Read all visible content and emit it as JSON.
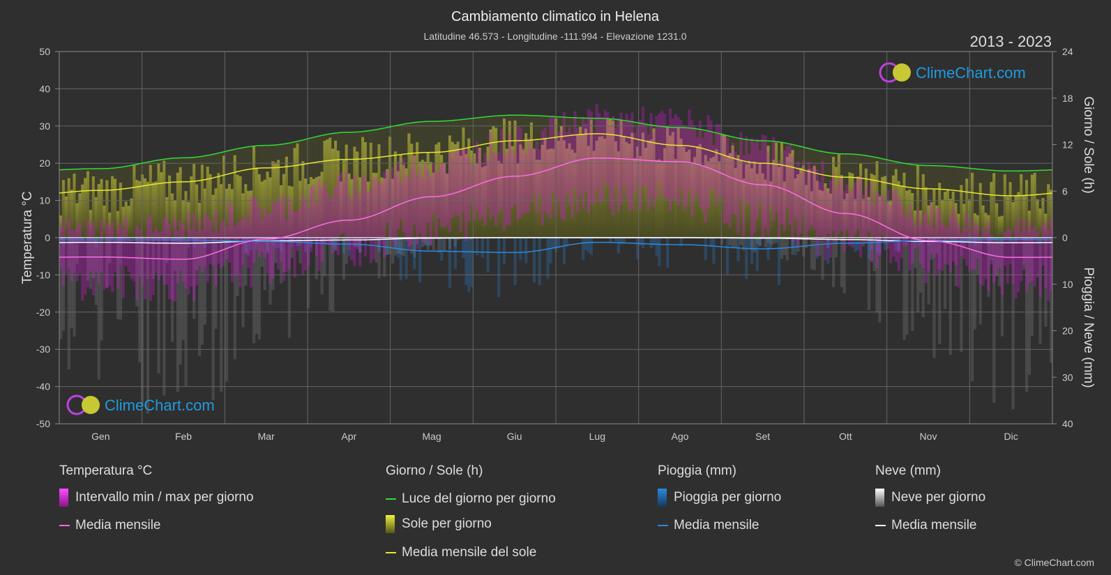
{
  "header": {
    "title": "Cambiamento climatico in Helena",
    "subtitle": "Latitudine 46.573 - Longitudine -111.994 - Elevazione 1231.0",
    "years": "2013 - 2023"
  },
  "brand": {
    "name": "ClimeChart.com",
    "copyright": "© ClimeChart.com"
  },
  "colors": {
    "background": "#2f2f2f",
    "temp_range": "#d81bd8",
    "temp_mean": "#ff6be8",
    "daylight": "#33dd33",
    "sun": "#c8c832",
    "sun_mean": "#e8e832",
    "rain": "#2a8ae0",
    "rain_mean": "#2a8ae0",
    "snow": "#bbbbbb",
    "snow_mean": "#ffffff",
    "brand": "#1e9be0"
  },
  "chart_data": {
    "type": "line",
    "categories": [
      "Gen",
      "Feb",
      "Mar",
      "Apr",
      "Mag",
      "Giu",
      "Lug",
      "Ago",
      "Set",
      "Ott",
      "Nov",
      "Dic"
    ],
    "ylabel_left": "Temperatura °C",
    "ylabel_right_top": "Giorno / Sole (h)",
    "ylabel_right_bottom": "Pioggia / Neve (mm)",
    "ylim_left": [
      -50,
      50
    ],
    "yticks_left": [
      50,
      40,
      30,
      20,
      10,
      0,
      -10,
      -20,
      -30,
      -40,
      -50
    ],
    "yticks_right_top": [
      24,
      18,
      12,
      6,
      0
    ],
    "yticks_right_bottom": [
      0,
      10,
      20,
      30,
      40
    ],
    "grid": true,
    "series": [
      {
        "name": "Media mensile",
        "group": "temperature",
        "unit": "°C",
        "values": [
          -5.2,
          -5.8,
          -0.4,
          4.7,
          11.0,
          16.5,
          21.4,
          20.4,
          14.2,
          6.5,
          -0.8,
          -5.3
        ]
      },
      {
        "name": "Luce del giorno per giorno",
        "group": "day_sun",
        "unit": "h",
        "values": [
          8.9,
          10.3,
          11.9,
          13.6,
          15.0,
          15.8,
          15.4,
          14.2,
          12.5,
          10.8,
          9.3,
          8.6
        ]
      },
      {
        "name": "Media mensile del sole",
        "group": "day_sun",
        "unit": "h",
        "values": [
          6.1,
          7.2,
          9.0,
          10.1,
          11.0,
          12.5,
          13.4,
          11.9,
          9.6,
          7.8,
          6.3,
          5.4
        ]
      },
      {
        "name": "Media mensile",
        "group": "rain",
        "unit": "mm",
        "values": [
          0.5,
          0.5,
          0.8,
          1.4,
          2.9,
          3.2,
          1.0,
          1.5,
          2.4,
          1.2,
          0.6,
          0.4
        ]
      },
      {
        "name": "Media mensile",
        "group": "snow",
        "unit": "mm",
        "values": [
          1.0,
          1.2,
          0.7,
          0.5,
          0.1,
          0.0,
          0.0,
          0.0,
          0.1,
          0.4,
          0.8,
          1.1
        ]
      }
    ],
    "daily_range": {
      "temp_max": [
        2.0,
        3.0,
        8.0,
        14.0,
        20.0,
        26.0,
        32.0,
        31.0,
        24.0,
        15.0,
        6.0,
        1.5
      ],
      "temp_min": [
        -12.0,
        -12.5,
        -8.0,
        -3.0,
        2.0,
        7.0,
        11.0,
        10.0,
        4.5,
        -2.0,
        -7.5,
        -12.0
      ]
    }
  },
  "legend": {
    "temperature": {
      "title": "Temperatura °C",
      "range_label": "Intervallo min / max per giorno",
      "mean_label": "Media mensile"
    },
    "daysun": {
      "title": "Giorno / Sole (h)",
      "daylight_label": "Luce del giorno per giorno",
      "sun_label": "Sole per giorno",
      "sun_mean_label": "Media mensile del sole"
    },
    "rain": {
      "title": "Pioggia (mm)",
      "rain_label": "Pioggia per giorno",
      "mean_label": "Media mensile"
    },
    "snow": {
      "title": "Neve (mm)",
      "snow_label": "Neve per giorno",
      "mean_label": "Media mensile"
    }
  }
}
